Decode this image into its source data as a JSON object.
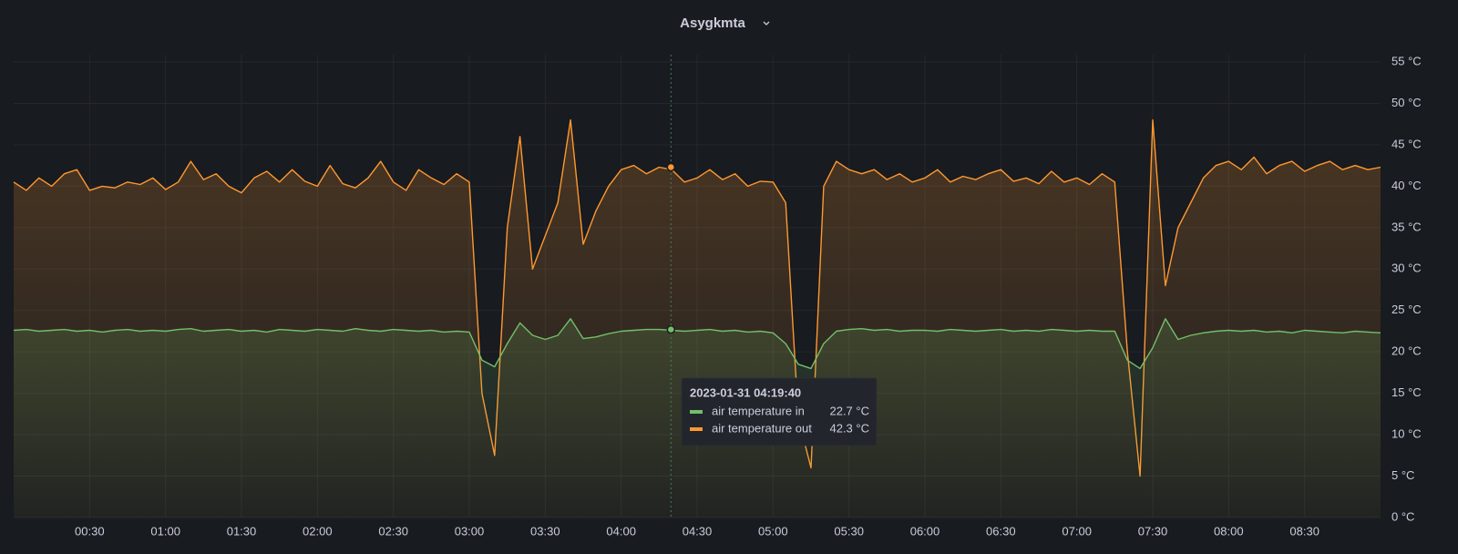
{
  "chart_data": {
    "type": "line",
    "title": "Asygkmta",
    "x": [
      "00:00",
      "00:05",
      "00:10",
      "00:15",
      "00:20",
      "00:25",
      "00:30",
      "00:35",
      "00:40",
      "00:45",
      "00:50",
      "00:55",
      "01:00",
      "01:05",
      "01:10",
      "01:15",
      "01:20",
      "01:25",
      "01:30",
      "01:35",
      "01:40",
      "01:45",
      "01:50",
      "01:55",
      "02:00",
      "02:05",
      "02:10",
      "02:15",
      "02:20",
      "02:25",
      "02:30",
      "02:35",
      "02:40",
      "02:45",
      "02:50",
      "02:55",
      "03:00",
      "03:05",
      "03:10",
      "03:15",
      "03:20",
      "03:25",
      "03:30",
      "03:35",
      "03:40",
      "03:45",
      "03:50",
      "03:55",
      "04:00",
      "04:05",
      "04:10",
      "04:15",
      "04:20",
      "04:25",
      "04:30",
      "04:35",
      "04:40",
      "04:45",
      "04:50",
      "04:55",
      "05:00",
      "05:05",
      "05:10",
      "05:15",
      "05:20",
      "05:25",
      "05:30",
      "05:35",
      "05:40",
      "05:45",
      "05:50",
      "05:55",
      "06:00",
      "06:05",
      "06:10",
      "06:15",
      "06:20",
      "06:25",
      "06:30",
      "06:35",
      "06:40",
      "06:45",
      "06:50",
      "06:55",
      "07:00",
      "07:05",
      "07:10",
      "07:15",
      "07:20",
      "07:25",
      "07:30",
      "07:35",
      "07:40",
      "07:45",
      "07:50",
      "07:55",
      "08:00",
      "08:05",
      "08:10",
      "08:15",
      "08:20",
      "08:25",
      "08:30",
      "08:35",
      "08:40",
      "08:45",
      "08:50",
      "08:55",
      "09:00"
    ],
    "series": [
      {
        "name": "air temperature in",
        "color": "#73bf69",
        "values": [
          22.6,
          22.7,
          22.5,
          22.6,
          22.7,
          22.5,
          22.6,
          22.4,
          22.6,
          22.7,
          22.5,
          22.6,
          22.5,
          22.7,
          22.8,
          22.5,
          22.6,
          22.7,
          22.5,
          22.6,
          22.4,
          22.7,
          22.6,
          22.5,
          22.7,
          22.6,
          22.5,
          22.8,
          22.6,
          22.5,
          22.7,
          22.6,
          22.5,
          22.6,
          22.4,
          22.5,
          22.4,
          19,
          18.2,
          21,
          23.5,
          22,
          21.5,
          22,
          24,
          21.6,
          21.8,
          22.2,
          22.5,
          22.6,
          22.7,
          22.7,
          22.6,
          22.5,
          22.6,
          22.7,
          22.5,
          22.6,
          22.4,
          22.5,
          22.3,
          21,
          18.5,
          18,
          21,
          22.5,
          22.7,
          22.8,
          22.6,
          22.7,
          22.5,
          22.6,
          22.6,
          22.5,
          22.7,
          22.6,
          22.5,
          22.6,
          22.7,
          22.5,
          22.6,
          22.5,
          22.7,
          22.6,
          22.5,
          22.6,
          22.5,
          22.5,
          19,
          18,
          20.5,
          24,
          21.5,
          22,
          22.3,
          22.5,
          22.6,
          22.5,
          22.6,
          22.4,
          22.5,
          22.3,
          22.6,
          22.5,
          22.4,
          22.3,
          22.5,
          22.4,
          22.3
        ]
      },
      {
        "name": "air temperature out",
        "color": "#ff9830",
        "values": [
          40.5,
          39.5,
          41,
          40,
          41.5,
          42,
          39.5,
          40,
          39.8,
          40.5,
          40.2,
          41,
          39.6,
          40.5,
          43,
          40.8,
          41.5,
          40,
          39.2,
          41,
          41.8,
          40.5,
          42,
          40.6,
          40,
          42.5,
          40.3,
          39.8,
          41,
          43,
          40.5,
          39.5,
          42,
          41,
          40.2,
          41.5,
          40.5,
          15,
          7.5,
          35,
          46,
          30,
          34,
          38,
          48,
          33,
          37,
          40,
          42,
          42.5,
          41.5,
          42.3,
          42,
          40.5,
          41,
          42,
          40.8,
          41.5,
          40,
          40.6,
          40.5,
          38,
          12,
          6,
          40,
          43,
          42,
          41.5,
          42,
          40.8,
          41.5,
          40.5,
          41,
          42,
          40.5,
          41.2,
          40.8,
          41.5,
          42,
          40.6,
          41,
          40.3,
          41.8,
          40.5,
          41,
          40.2,
          41.5,
          40.5,
          20,
          5,
          48,
          28,
          35,
          38,
          41,
          42.5,
          43,
          42,
          43.5,
          41.5,
          42.5,
          43,
          41.8,
          42.5,
          43,
          42,
          42.5,
          42,
          42.3
        ]
      }
    ],
    "xlim": [
      "00:00",
      "09:00"
    ],
    "xticks": [
      "00:30",
      "01:00",
      "01:30",
      "02:00",
      "02:30",
      "03:00",
      "03:30",
      "04:00",
      "04:30",
      "05:00",
      "05:30",
      "06:00",
      "06:30",
      "07:00",
      "07:30",
      "08:00",
      "08:30"
    ],
    "ylim": [
      0,
      55
    ],
    "yticks": [
      {
        "value": 0,
        "label": "0 °C"
      },
      {
        "value": 5,
        "label": "5 °C"
      },
      {
        "value": 10,
        "label": "10 °C"
      },
      {
        "value": 15,
        "label": "15 °C"
      },
      {
        "value": 20,
        "label": "20 °C"
      },
      {
        "value": 25,
        "label": "25 °C"
      },
      {
        "value": 30,
        "label": "30 °C"
      },
      {
        "value": 35,
        "label": "35 °C"
      },
      {
        "value": 40,
        "label": "40 °C"
      },
      {
        "value": 45,
        "label": "45 °C"
      },
      {
        "value": 50,
        "label": "50 °C"
      },
      {
        "value": 55,
        "label": "55 °C"
      }
    ],
    "grid": true,
    "tooltip": {
      "title": "2023-01-31 04:19:40",
      "values": [
        22.7,
        42.3
      ],
      "value_labels": [
        "22.7 °C",
        "42.3 °C"
      ]
    }
  }
}
